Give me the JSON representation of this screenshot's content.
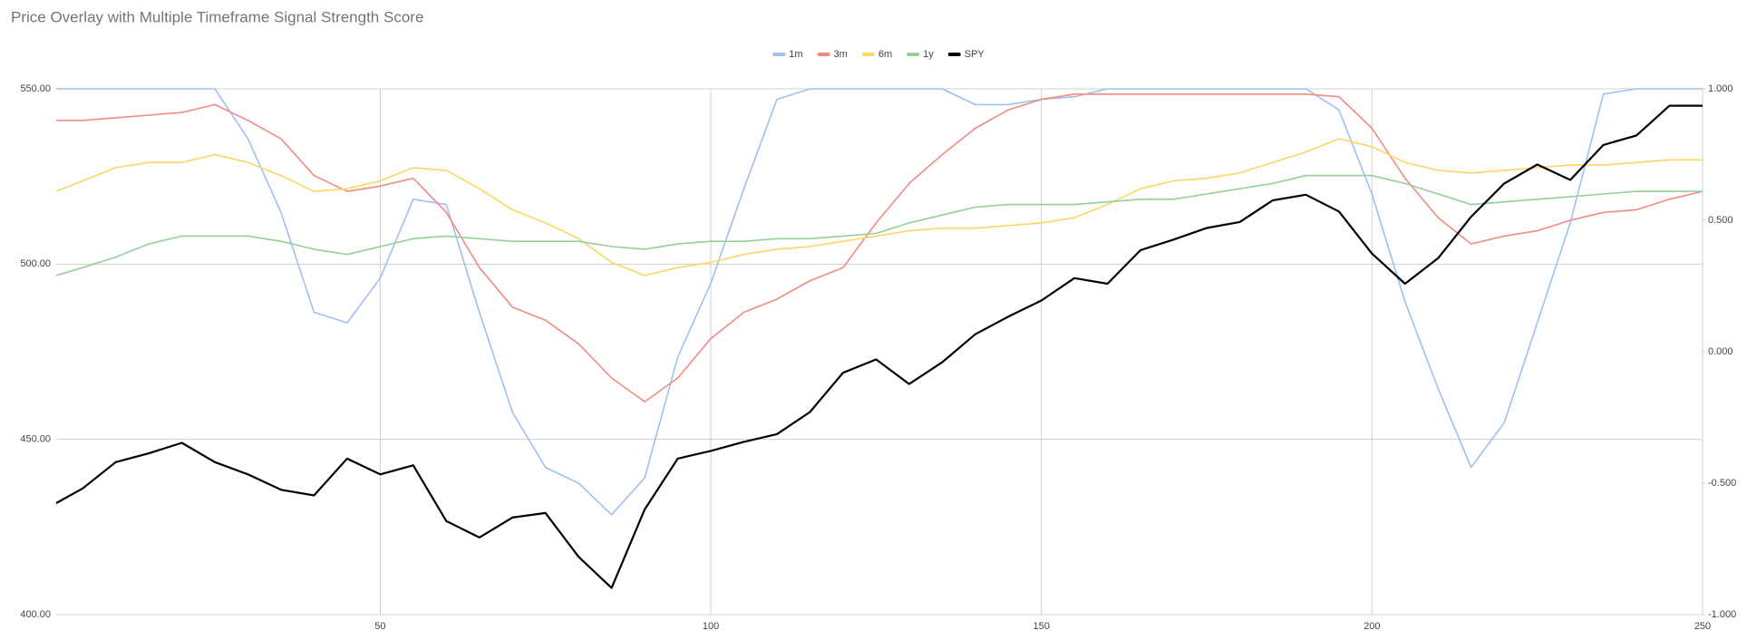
{
  "chart_data": {
    "type": "line",
    "title": "Price Overlay with Multiple Timeframe Signal Strength Score",
    "x": [
      1,
      5,
      10,
      15,
      20,
      25,
      30,
      35,
      40,
      45,
      50,
      55,
      60,
      65,
      70,
      75,
      80,
      85,
      90,
      95,
      100,
      105,
      110,
      115,
      120,
      125,
      130,
      135,
      140,
      145,
      150,
      155,
      160,
      165,
      170,
      175,
      180,
      185,
      190,
      195,
      200,
      205,
      210,
      215,
      220,
      225,
      230,
      235,
      240,
      245,
      250
    ],
    "xlim": [
      1,
      250
    ],
    "xticks": [
      50,
      100,
      150,
      200,
      250
    ],
    "ylim": [
      400,
      550
    ],
    "yticks": [
      {
        "value": 400,
        "label": "400.00"
      },
      {
        "value": 450,
        "label": "450.00"
      },
      {
        "value": 500,
        "label": "500.00"
      },
      {
        "value": 550,
        "label": "550.00"
      }
    ],
    "y2lim": [
      -1,
      1
    ],
    "y2ticks": [
      {
        "value": -1,
        "label": "-1.000"
      },
      {
        "value": -0.5,
        "label": "-0.500"
      },
      {
        "value": 0,
        "label": "0.000"
      },
      {
        "value": 0.5,
        "label": "0.500"
      },
      {
        "value": 1,
        "label": "1.000"
      }
    ],
    "grid": true,
    "legend": "top",
    "series": [
      {
        "name": "1m",
        "color": "#9fc0f2",
        "axis": "y2",
        "values": [
          1.0,
          1.0,
          1.0,
          1.0,
          1.0,
          1.0,
          0.81,
          0.53,
          0.15,
          0.11,
          0.28,
          0.58,
          0.56,
          0.15,
          -0.23,
          -0.44,
          -0.5,
          -0.62,
          -0.48,
          -0.02,
          0.26,
          0.62,
          0.96,
          1.0,
          1.0,
          1.0,
          1.0,
          1.0,
          0.94,
          0.94,
          0.96,
          0.97,
          1.0,
          1.0,
          1.0,
          1.0,
          1.0,
          1.0,
          1.0,
          0.92,
          0.6,
          0.19,
          -0.14,
          -0.44,
          -0.27,
          0.11,
          0.49,
          0.98,
          1.0,
          1.0,
          1.0
        ]
      },
      {
        "name": "3m",
        "color": "#f28b82",
        "axis": "y2",
        "values": [
          0.88,
          0.88,
          0.89,
          0.9,
          0.91,
          0.94,
          0.88,
          0.81,
          0.67,
          0.61,
          0.63,
          0.66,
          0.53,
          0.32,
          0.17,
          0.12,
          0.03,
          -0.1,
          -0.19,
          -0.1,
          0.05,
          0.15,
          0.2,
          0.27,
          0.32,
          0.49,
          0.64,
          0.75,
          0.85,
          0.92,
          0.96,
          0.98,
          0.98,
          0.98,
          0.98,
          0.98,
          0.98,
          0.98,
          0.98,
          0.97,
          0.85,
          0.66,
          0.51,
          0.41,
          0.44,
          0.46,
          0.5,
          0.53,
          0.54,
          0.58,
          0.61
        ]
      },
      {
        "name": "6m",
        "color": "#fdd663",
        "axis": "y2",
        "values": [
          0.61,
          0.65,
          0.7,
          0.72,
          0.72,
          0.75,
          0.72,
          0.67,
          0.61,
          0.62,
          0.65,
          0.7,
          0.69,
          0.62,
          0.54,
          0.49,
          0.43,
          0.34,
          0.29,
          0.32,
          0.34,
          0.37,
          0.39,
          0.4,
          0.42,
          0.44,
          0.46,
          0.47,
          0.47,
          0.48,
          0.49,
          0.51,
          0.56,
          0.62,
          0.65,
          0.66,
          0.68,
          0.72,
          0.76,
          0.81,
          0.78,
          0.72,
          0.69,
          0.68,
          0.69,
          0.7,
          0.71,
          0.71,
          0.72,
          0.73,
          0.73
        ]
      },
      {
        "name": "1y",
        "color": "#93d09a",
        "axis": "y2",
        "values": [
          0.29,
          0.32,
          0.36,
          0.41,
          0.44,
          0.44,
          0.44,
          0.42,
          0.39,
          0.37,
          0.4,
          0.43,
          0.44,
          0.43,
          0.42,
          0.42,
          0.42,
          0.4,
          0.39,
          0.41,
          0.42,
          0.42,
          0.43,
          0.43,
          0.44,
          0.45,
          0.49,
          0.52,
          0.55,
          0.56,
          0.56,
          0.56,
          0.57,
          0.58,
          0.58,
          0.6,
          0.62,
          0.64,
          0.67,
          0.67,
          0.67,
          0.64,
          0.6,
          0.56,
          0.57,
          0.58,
          0.59,
          0.6,
          0.61,
          0.61,
          0.61
        ]
      },
      {
        "name": "SPY",
        "color": "#000000",
        "axis": "y",
        "values": [
          431.8,
          436.0,
          443.5,
          446.0,
          449.0,
          443.5,
          440.0,
          435.6,
          434.0,
          444.5,
          440.0,
          442.6,
          426.7,
          422.0,
          427.7,
          429.0,
          416.5,
          407.6,
          430.0,
          444.5,
          446.7,
          449.3,
          451.5,
          457.8,
          469.0,
          472.8,
          465.8,
          472.0,
          480.0,
          485.0,
          489.6,
          496.0,
          494.4,
          504.0,
          507.0,
          510.3,
          512.0,
          518.2,
          519.8,
          515.0,
          503.0,
          494.4,
          501.7,
          513.5,
          523.0,
          528.4,
          524.0,
          534.0,
          536.7,
          545.2,
          545.2
        ]
      }
    ]
  }
}
